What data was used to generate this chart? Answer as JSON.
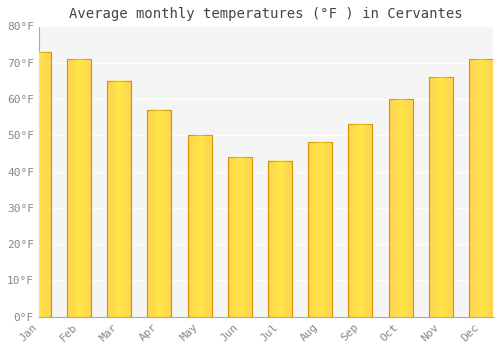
{
  "title": "Average monthly temperatures (°F ) in Cervantes",
  "months": [
    "Jan",
    "Feb",
    "Mar",
    "Apr",
    "May",
    "Jun",
    "Jul",
    "Aug",
    "Sep",
    "Oct",
    "Nov",
    "Dec"
  ],
  "values": [
    73,
    71,
    65,
    57,
    50,
    44,
    43,
    48,
    53,
    60,
    66,
    71
  ],
  "bar_color_left": "#F5A623",
  "bar_color_center": "#FFD060",
  "bar_color_right": "#F5A623",
  "bar_edge_color": "#CC8800",
  "background_color": "#FFFFFF",
  "plot_bg_color": "#F5F5F5",
  "grid_color": "#FFFFFF",
  "ylim": [
    0,
    80
  ],
  "yticks": [
    0,
    10,
    20,
    30,
    40,
    50,
    60,
    70,
    80
  ],
  "title_fontsize": 10,
  "tick_fontsize": 8,
  "tick_color": "#888888",
  "bar_width": 0.6
}
